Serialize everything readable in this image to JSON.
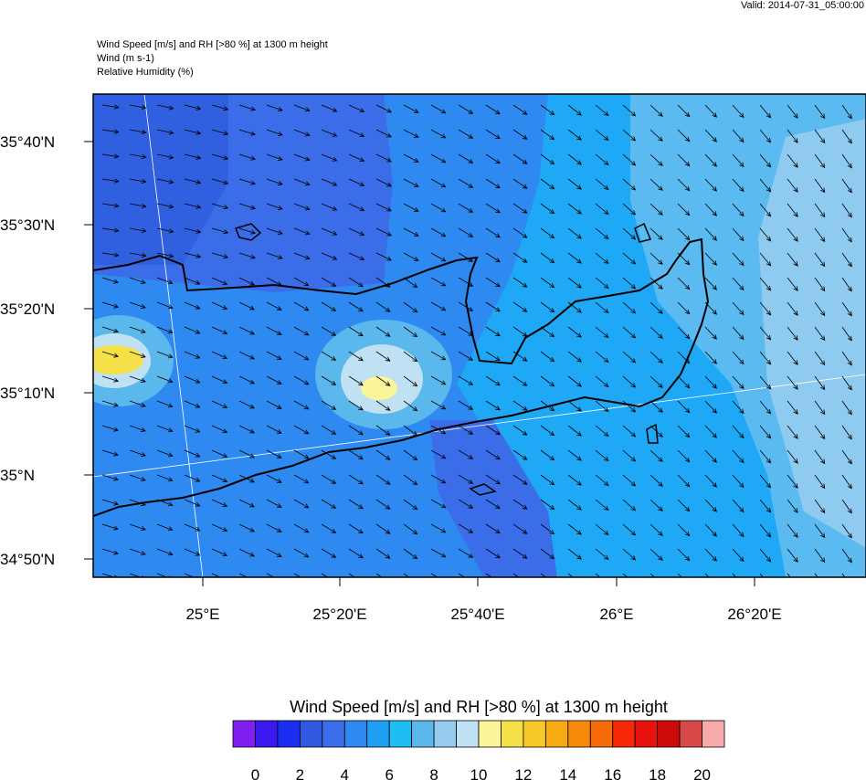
{
  "valid": "Valid: 2014-07-31_05:00:00",
  "header": [
    "Wind Speed [m/s] and RH [>80 %] at 1300 m height",
    "Wind   (m s-1)",
    "Relative Humidity   (%)"
  ],
  "lat_labels": [
    "35°40'N",
    "35°30'N",
    "35°20'N",
    "35°10'N",
    "35°N",
    "34°50'N"
  ],
  "lon_labels": [
    "25°E",
    "25°20'E",
    "25°40'E",
    "26°E",
    "26°20'E"
  ],
  "colorbar": {
    "title": "Wind Speed [m/s] and RH [>80 %] at 1300 m height",
    "colors": [
      "#7f1ff0",
      "#3b18f0",
      "#1a2ef0",
      "#3058e0",
      "#3b6de8",
      "#2e8af0",
      "#1fa0f5",
      "#1ebdf5",
      "#5bb8ec",
      "#96cdee",
      "#c0e0f4",
      "#fcf59a",
      "#f5e04a",
      "#f7c82a",
      "#f7aa14",
      "#f78a0a",
      "#f76a0a",
      "#f72808",
      "#e8120e",
      "#cc0a0a",
      "#d84848",
      "#f7aaaa"
    ],
    "ticks": [
      0,
      2,
      4,
      6,
      8,
      10,
      12,
      14,
      16,
      18,
      20
    ]
  }
}
